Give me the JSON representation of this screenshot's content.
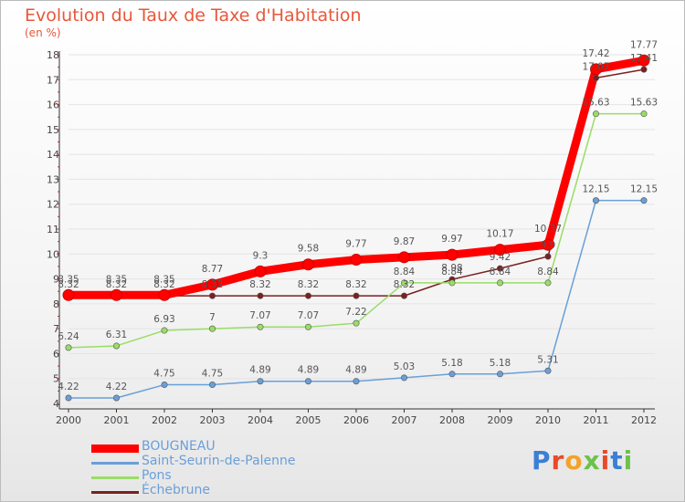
{
  "chart_data": {
    "type": "line",
    "title": "Evolution du Taux de Taxe d'Habitation",
    "subtitle": "(en %)",
    "categories": [
      "2000",
      "2001",
      "2002",
      "2003",
      "2004",
      "2005",
      "2006",
      "2007",
      "2008",
      "2009",
      "2010",
      "2011",
      "2012"
    ],
    "ylim": [
      4,
      18
    ],
    "yticks": [
      "4",
      "5",
      "6",
      "7",
      "8",
      "9",
      "10",
      "11",
      "12",
      "13",
      "14",
      "15",
      "16",
      "17",
      "18"
    ],
    "series": [
      {
        "name": "BOUGNEAU",
        "color": "#ff0000",
        "values": [
          8.35,
          8.35,
          8.35,
          8.77,
          9.3,
          9.58,
          9.77,
          9.87,
          9.97,
          10.17,
          10.37,
          17.42,
          17.77
        ],
        "labels": [
          "8.35",
          "8.35",
          "8.35",
          "8.77",
          "9.3",
          "9.58",
          "9.77",
          "9.87",
          "9.97",
          "10.17",
          "10.37",
          "17.42",
          "17.77"
        ]
      },
      {
        "name": "Saint-Seurin-de-Palenne",
        "color": "#6a9fd8",
        "values": [
          4.22,
          4.22,
          4.75,
          4.75,
          4.89,
          4.89,
          4.89,
          5.03,
          5.18,
          5.18,
          5.31,
          12.15,
          12.15
        ],
        "labels": [
          "4.22",
          "4.22",
          "4.75",
          "4.75",
          "4.89",
          "4.89",
          "4.89",
          "5.03",
          "5.18",
          "5.18",
          "5.31",
          "12.15",
          "12.15"
        ]
      },
      {
        "name": "Pons",
        "color": "#99dd66",
        "values": [
          6.24,
          6.31,
          6.93,
          7,
          7.07,
          7.07,
          7.22,
          8.84,
          8.84,
          8.84,
          8.84,
          15.63,
          15.63
        ],
        "labels": [
          "6.24",
          "6.31",
          "6.93",
          "7",
          "7.07",
          "7.07",
          "7.22",
          "8.84",
          "8.84",
          "8.84",
          "8.84",
          "15.63",
          "15.63"
        ]
      },
      {
        "name": "Échebrune",
        "color": "#7a2020",
        "values": [
          8.32,
          8.32,
          8.32,
          8.32,
          8.32,
          8.32,
          8.32,
          8.32,
          8.98,
          9.42,
          9.9,
          17.07,
          17.41
        ],
        "labels": [
          "8.32",
          "8.32",
          "8.32",
          "8.32",
          "8.32",
          "8.32",
          "8.32",
          "8.32",
          "8.98",
          "9.42",
          "9.9",
          "17.07",
          "17.41"
        ]
      }
    ]
  },
  "logo_text": "Proxiti"
}
